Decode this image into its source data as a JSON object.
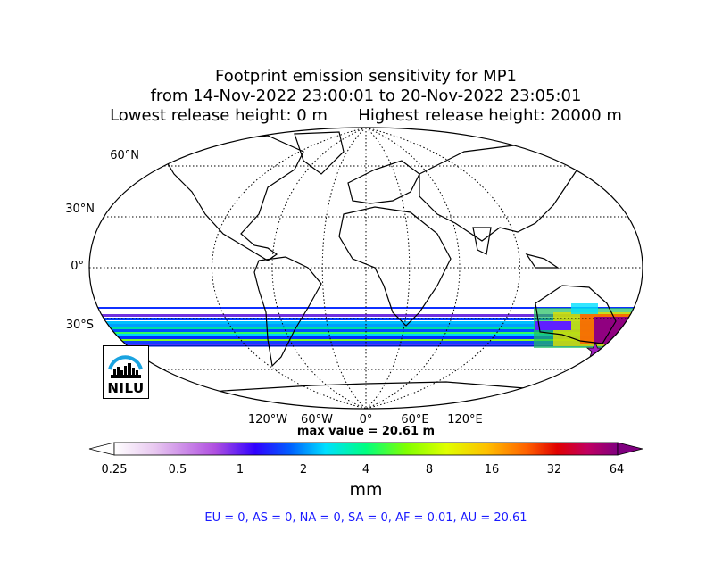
{
  "title": {
    "line1": "Footprint emission sensitivity for MP1",
    "line2": "from 14-Nov-2022 23:00:01 to 20-Nov-2022 23:05:01",
    "line3": "Lowest release height: 0 m      Highest release height: 20000 m"
  },
  "map": {
    "lat_labels": [
      "60°N",
      "30°N",
      "0°",
      "30°S"
    ],
    "lon_labels": [
      "120°W",
      "60°W",
      "0°",
      "60°E",
      "120°E"
    ],
    "max_value_text": "max value = 20.61 m",
    "logo_text": "NILU",
    "marker": "release-location-star"
  },
  "colorbar": {
    "ticks": [
      "0.25",
      "0.5",
      "1",
      "2",
      "4",
      "8",
      "16",
      "32",
      "64"
    ],
    "unit": "mm",
    "colors": [
      "#ffffff",
      "#e8c8f0",
      "#c060e0",
      "#5020ff",
      "#0040ff",
      "#00c0ff",
      "#00ffb0",
      "#60ff00",
      "#c0ff00",
      "#ffe000",
      "#ffa000",
      "#ff4000",
      "#e00000",
      "#c00060",
      "#900080"
    ]
  },
  "summary": "EU = 0,  AS = 0,  NA = 0,  SA = 0,  AF = 0.01,  AU = 20.61"
}
